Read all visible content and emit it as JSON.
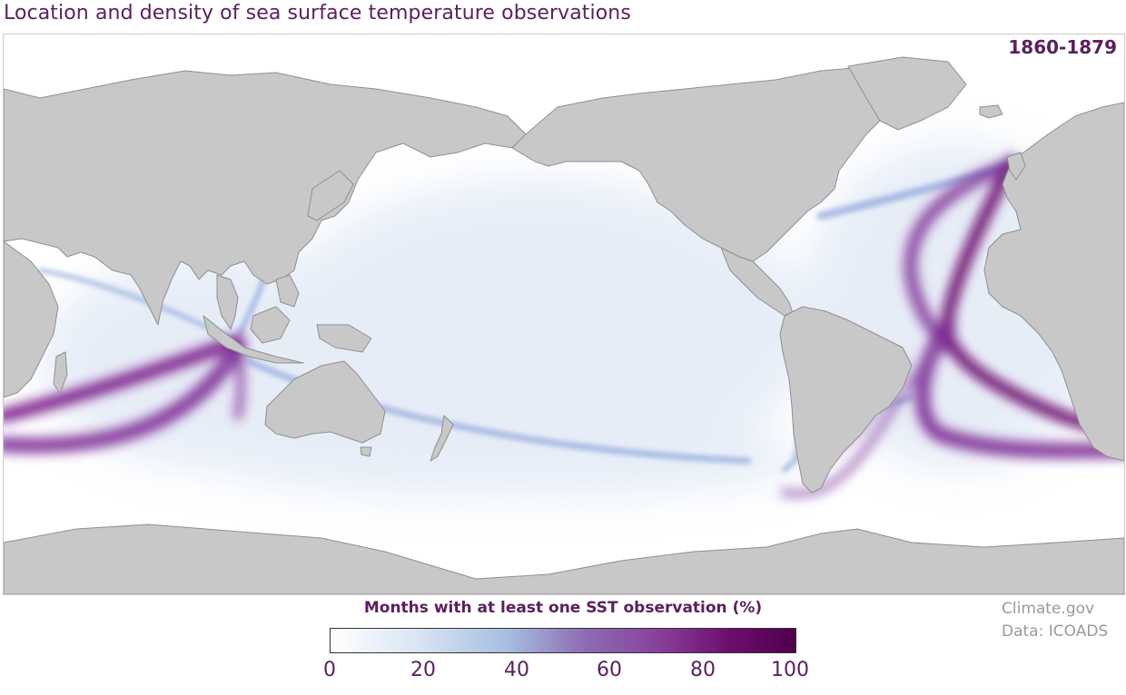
{
  "title": "Location and density of sea surface temperature observations",
  "period": "1860-1879",
  "legend": {
    "title": "Months with at least one SST observation (%)",
    "ticks": [
      "0",
      "20",
      "40",
      "60",
      "80",
      "100"
    ],
    "colors": [
      "#ffffff",
      "#dbe6f4",
      "#a6bde0",
      "#8c6bb1",
      "#88419d",
      "#6e0f6e",
      "#4d004b"
    ]
  },
  "credits": {
    "site": "Climate.gov",
    "data": "Data: ICOADS"
  },
  "colors": {
    "land": "#c8c8c8",
    "land_border": "#8f8f8f",
    "title": "#5b1f5e",
    "credit": "#9a9a9a"
  }
}
